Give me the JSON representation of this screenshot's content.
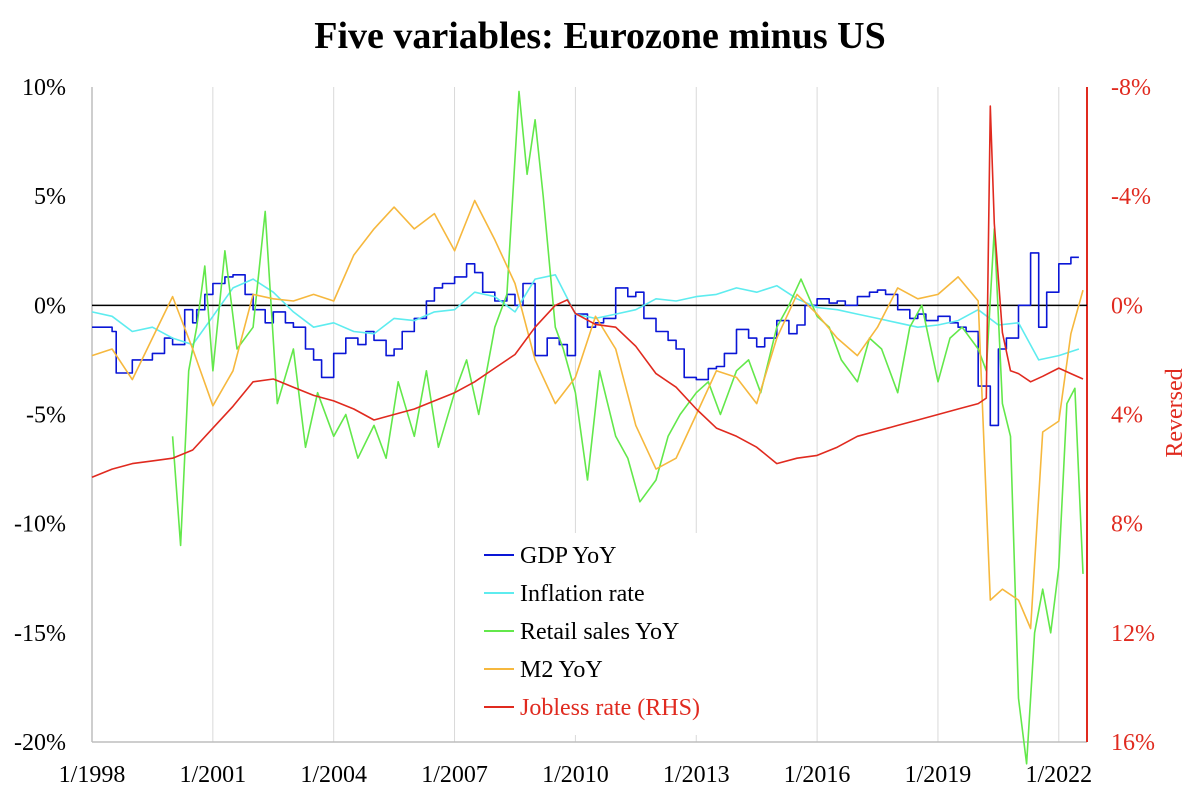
{
  "chart_data": {
    "type": "line",
    "title": "Five variables: Eurozone minus US",
    "ylabel_right": "Reversed",
    "left_axis": {
      "ylim": [
        -20,
        10
      ],
      "ticks": [
        10,
        5,
        0,
        -5,
        -10,
        -15,
        -20
      ],
      "tick_labels": [
        "10%",
        "5%",
        "0%",
        "-5%",
        "-10%",
        "-15%",
        "-20%"
      ]
    },
    "right_axis": {
      "reversed": true,
      "ylim": [
        16,
        -8
      ],
      "ticks": [
        -8,
        -4,
        0,
        4,
        8,
        12,
        16
      ],
      "tick_labels": [
        "-8%",
        "-4%",
        "0%",
        "4%",
        "8%",
        "12%",
        "16%"
      ]
    },
    "x_axis": {
      "range": [
        1998.0,
        2022.7
      ],
      "ticks": [
        1998,
        2001,
        2004,
        2007,
        2010,
        2013,
        2016,
        2019,
        2022
      ],
      "tick_labels": [
        "1/1998",
        "1/2001",
        "1/2004",
        "1/2007",
        "1/2010",
        "1/2013",
        "1/2016",
        "1/2019",
        "1/2022"
      ]
    },
    "grid": "vertical",
    "legend_position": "bottom-center",
    "series": [
      {
        "name": "GDP YoY",
        "color": "#0a16d6",
        "axis": "left",
        "step": true,
        "x": [
          1998.0,
          1998.5,
          1998.6,
          1999.0,
          1999.5,
          1999.8,
          2000.0,
          2000.3,
          2000.5,
          2000.6,
          2000.8,
          2001.0,
          2001.3,
          2001.5,
          2001.8,
          2002.0,
          2002.3,
          2002.5,
          2002.8,
          2003.0,
          2003.3,
          2003.5,
          2003.7,
          2004.0,
          2004.3,
          2004.6,
          2004.8,
          2005.0,
          2005.3,
          2005.5,
          2005.7,
          2006.0,
          2006.3,
          2006.5,
          2006.7,
          2007.0,
          2007.3,
          2007.5,
          2007.7,
          2008.0,
          2008.3,
          2008.5,
          2008.7,
          2009.0,
          2009.3,
          2009.6,
          2009.8,
          2010.0,
          2010.3,
          2010.5,
          2010.7,
          2011.0,
          2011.3,
          2011.5,
          2011.7,
          2012.0,
          2012.3,
          2012.5,
          2012.7,
          2013.0,
          2013.3,
          2013.5,
          2013.7,
          2014.0,
          2014.3,
          2014.5,
          2014.7,
          2015.0,
          2015.3,
          2015.5,
          2015.7,
          2016.0,
          2016.3,
          2016.5,
          2016.7,
          2017.0,
          2017.3,
          2017.5,
          2017.7,
          2018.0,
          2018.3,
          2018.5,
          2018.7,
          2019.0,
          2019.3,
          2019.5,
          2019.7,
          2020.0,
          2020.3,
          2020.5,
          2020.7,
          2021.0,
          2021.3,
          2021.5,
          2021.7,
          2022.0,
          2022.3,
          2022.5
        ],
        "y": [
          -1.0,
          -1.2,
          -3.1,
          -2.5,
          -2.2,
          -1.5,
          -1.8,
          -0.2,
          -0.8,
          -0.2,
          0.5,
          1.0,
          1.3,
          1.4,
          0.5,
          -0.2,
          -0.8,
          -0.3,
          -0.8,
          -1.0,
          -2.0,
          -2.5,
          -3.3,
          -2.2,
          -1.5,
          -1.8,
          -1.2,
          -1.6,
          -2.3,
          -2.0,
          -1.2,
          -0.6,
          0.2,
          0.8,
          1.0,
          1.3,
          1.9,
          1.5,
          0.6,
          0.2,
          0.5,
          0.0,
          1.0,
          -2.3,
          -1.5,
          -1.8,
          -2.3,
          -0.4,
          -1.0,
          -0.8,
          -0.6,
          0.8,
          0.4,
          0.6,
          -0.6,
          -1.2,
          -1.6,
          -2.0,
          -3.3,
          -3.4,
          -2.9,
          -2.8,
          -2.2,
          -1.1,
          -1.5,
          -1.9,
          -1.5,
          -0.7,
          -1.3,
          -0.9,
          0.0,
          0.3,
          0.1,
          0.2,
          0.0,
          0.4,
          0.6,
          0.7,
          0.5,
          -0.2,
          -0.6,
          -0.4,
          -0.7,
          -0.5,
          -0.8,
          -1.0,
          -1.2,
          -3.7,
          -5.5,
          -2.0,
          -1.5,
          0.0,
          2.4,
          -1.0,
          0.6,
          1.9,
          2.2,
          2.2
        ]
      },
      {
        "name": "Inflation rate",
        "color": "#5eecef",
        "axis": "left",
        "x": [
          1998.0,
          1998.5,
          1999.0,
          1999.5,
          2000.0,
          2000.5,
          2001.0,
          2001.5,
          2002.0,
          2002.5,
          2003.0,
          2003.5,
          2004.0,
          2004.5,
          2005.0,
          2005.5,
          2006.0,
          2006.5,
          2007.0,
          2007.5,
          2008.0,
          2008.5,
          2009.0,
          2009.5,
          2010.0,
          2010.5,
          2011.0,
          2011.5,
          2012.0,
          2012.5,
          2013.0,
          2013.5,
          2014.0,
          2014.5,
          2015.0,
          2015.5,
          2016.0,
          2016.5,
          2017.0,
          2017.5,
          2018.0,
          2018.5,
          2019.0,
          2019.5,
          2020.0,
          2020.5,
          2021.0,
          2021.5,
          2022.0,
          2022.5
        ],
        "y": [
          -0.3,
          -0.5,
          -1.2,
          -1.0,
          -1.5,
          -1.8,
          -0.5,
          0.8,
          1.2,
          0.6,
          -0.3,
          -1.0,
          -0.8,
          -1.2,
          -1.3,
          -0.6,
          -0.7,
          -0.3,
          -0.2,
          0.6,
          0.4,
          -0.3,
          1.2,
          1.4,
          -0.4,
          -0.6,
          -0.4,
          -0.2,
          0.3,
          0.2,
          0.4,
          0.5,
          0.8,
          0.6,
          0.9,
          0.3,
          -0.1,
          -0.2,
          -0.4,
          -0.6,
          -0.8,
          -1.0,
          -0.9,
          -0.7,
          -0.2,
          -0.9,
          -0.8,
          -2.5,
          -2.3,
          -2.0
        ]
      },
      {
        "name": "Retail sales YoY",
        "color": "#63e84b",
        "axis": "left",
        "x": [
          2000.0,
          2000.2,
          2000.4,
          2000.6,
          2000.8,
          2001.0,
          2001.3,
          2001.6,
          2002.0,
          2002.3,
          2002.6,
          2003.0,
          2003.3,
          2003.6,
          2004.0,
          2004.3,
          2004.6,
          2005.0,
          2005.3,
          2005.6,
          2006.0,
          2006.3,
          2006.6,
          2007.0,
          2007.3,
          2007.6,
          2008.0,
          2008.3,
          2008.6,
          2008.8,
          2009.0,
          2009.2,
          2009.5,
          2009.7,
          2010.0,
          2010.3,
          2010.6,
          2011.0,
          2011.3,
          2011.6,
          2012.0,
          2012.3,
          2012.6,
          2013.0,
          2013.3,
          2013.6,
          2014.0,
          2014.3,
          2014.6,
          2015.0,
          2015.3,
          2015.6,
          2016.0,
          2016.3,
          2016.6,
          2017.0,
          2017.3,
          2017.6,
          2018.0,
          2018.3,
          2018.6,
          2019.0,
          2019.3,
          2019.6,
          2020.0,
          2020.2,
          2020.4,
          2020.6,
          2020.8,
          2021.0,
          2021.2,
          2021.4,
          2021.6,
          2021.8,
          2022.0,
          2022.2,
          2022.4,
          2022.6
        ],
        "y": [
          -6.0,
          -11.0,
          -3.0,
          -1.0,
          1.8,
          -3.0,
          2.5,
          -2.0,
          -1.0,
          4.3,
          -4.5,
          -2.0,
          -6.5,
          -4.0,
          -6.0,
          -5.0,
          -7.0,
          -5.5,
          -7.0,
          -3.5,
          -6.0,
          -3.0,
          -6.5,
          -4.0,
          -2.5,
          -5.0,
          -1.0,
          0.5,
          9.8,
          6.0,
          8.5,
          5.0,
          -1.0,
          -2.0,
          -4.0,
          -8.0,
          -3.0,
          -6.0,
          -7.0,
          -9.0,
          -8.0,
          -6.0,
          -5.0,
          -4.0,
          -3.5,
          -5.0,
          -3.0,
          -2.5,
          -4.0,
          -1.0,
          0.0,
          1.2,
          -0.5,
          -1.0,
          -2.5,
          -3.5,
          -1.5,
          -2.0,
          -4.0,
          -1.0,
          0.0,
          -3.5,
          -1.5,
          -1.0,
          -2.0,
          -3.0,
          3.5,
          -4.5,
          -6.0,
          -18.0,
          -21.0,
          -15.0,
          -13.0,
          -15.0,
          -12.0,
          -4.5,
          -3.8,
          -12.3
        ]
      },
      {
        "name": "M2 YoY",
        "color": "#f6b83e",
        "axis": "left",
        "x": [
          1998.0,
          1998.5,
          1999.0,
          1999.5,
          2000.0,
          2000.5,
          2001.0,
          2001.5,
          2002.0,
          2002.5,
          2003.0,
          2003.5,
          2004.0,
          2004.5,
          2005.0,
          2005.5,
          2006.0,
          2006.5,
          2007.0,
          2007.5,
          2008.0,
          2008.5,
          2009.0,
          2009.5,
          2010.0,
          2010.5,
          2011.0,
          2011.5,
          2012.0,
          2012.5,
          2013.0,
          2013.5,
          2014.0,
          2014.5,
          2015.0,
          2015.5,
          2016.0,
          2016.5,
          2017.0,
          2017.5,
          2018.0,
          2018.5,
          2019.0,
          2019.5,
          2020.0,
          2020.3,
          2020.6,
          2021.0,
          2021.3,
          2021.6,
          2022.0,
          2022.3,
          2022.6
        ],
        "y": [
          -2.3,
          -2.0,
          -3.4,
          -1.5,
          0.4,
          -2.0,
          -4.6,
          -3.0,
          0.5,
          0.3,
          0.2,
          0.5,
          0.2,
          2.3,
          3.5,
          4.5,
          3.5,
          4.2,
          2.5,
          4.8,
          3.0,
          1.0,
          -2.5,
          -4.5,
          -3.3,
          -0.5,
          -2.0,
          -5.5,
          -7.5,
          -7.0,
          -5.0,
          -3.0,
          -3.3,
          -4.5,
          -1.5,
          0.5,
          -0.4,
          -1.5,
          -2.3,
          -1.0,
          0.8,
          0.3,
          0.5,
          1.3,
          0.2,
          -13.5,
          -13.0,
          -13.5,
          -14.8,
          -5.8,
          -5.3,
          -1.3,
          0.7
        ]
      },
      {
        "name": "Jobless rate (RHS)",
        "color": "#e02a1f",
        "axis": "right",
        "x": [
          1998.0,
          1998.5,
          1999.0,
          1999.5,
          2000.0,
          2000.5,
          2001.0,
          2001.5,
          2002.0,
          2002.5,
          2003.0,
          2003.5,
          2004.0,
          2004.5,
          2005.0,
          2005.5,
          2006.0,
          2006.5,
          2007.0,
          2007.5,
          2008.0,
          2008.5,
          2009.0,
          2009.5,
          2009.8,
          2010.0,
          2010.5,
          2011.0,
          2011.5,
          2012.0,
          2012.5,
          2013.0,
          2013.5,
          2014.0,
          2014.5,
          2015.0,
          2015.5,
          2016.0,
          2016.5,
          2017.0,
          2017.5,
          2018.0,
          2018.5,
          2019.0,
          2019.5,
          2020.0,
          2020.2,
          2020.3,
          2020.4,
          2020.6,
          2020.8,
          2021.0,
          2021.3,
          2021.6,
          2022.0,
          2022.3,
          2022.6
        ],
        "y": [
          6.3,
          6.0,
          5.8,
          5.7,
          5.6,
          5.3,
          4.5,
          3.7,
          2.8,
          2.7,
          3.0,
          3.3,
          3.5,
          3.8,
          4.2,
          4.0,
          3.8,
          3.5,
          3.2,
          2.8,
          2.3,
          1.8,
          0.8,
          0.0,
          -0.2,
          0.3,
          0.7,
          0.8,
          1.5,
          2.5,
          3.0,
          3.8,
          4.5,
          4.8,
          5.2,
          5.8,
          5.6,
          5.5,
          5.2,
          4.8,
          4.6,
          4.4,
          4.2,
          4.0,
          3.8,
          3.6,
          3.4,
          -7.3,
          -3.0,
          1.0,
          2.4,
          2.5,
          2.8,
          2.6,
          2.3,
          2.5,
          2.7
        ]
      }
    ]
  }
}
